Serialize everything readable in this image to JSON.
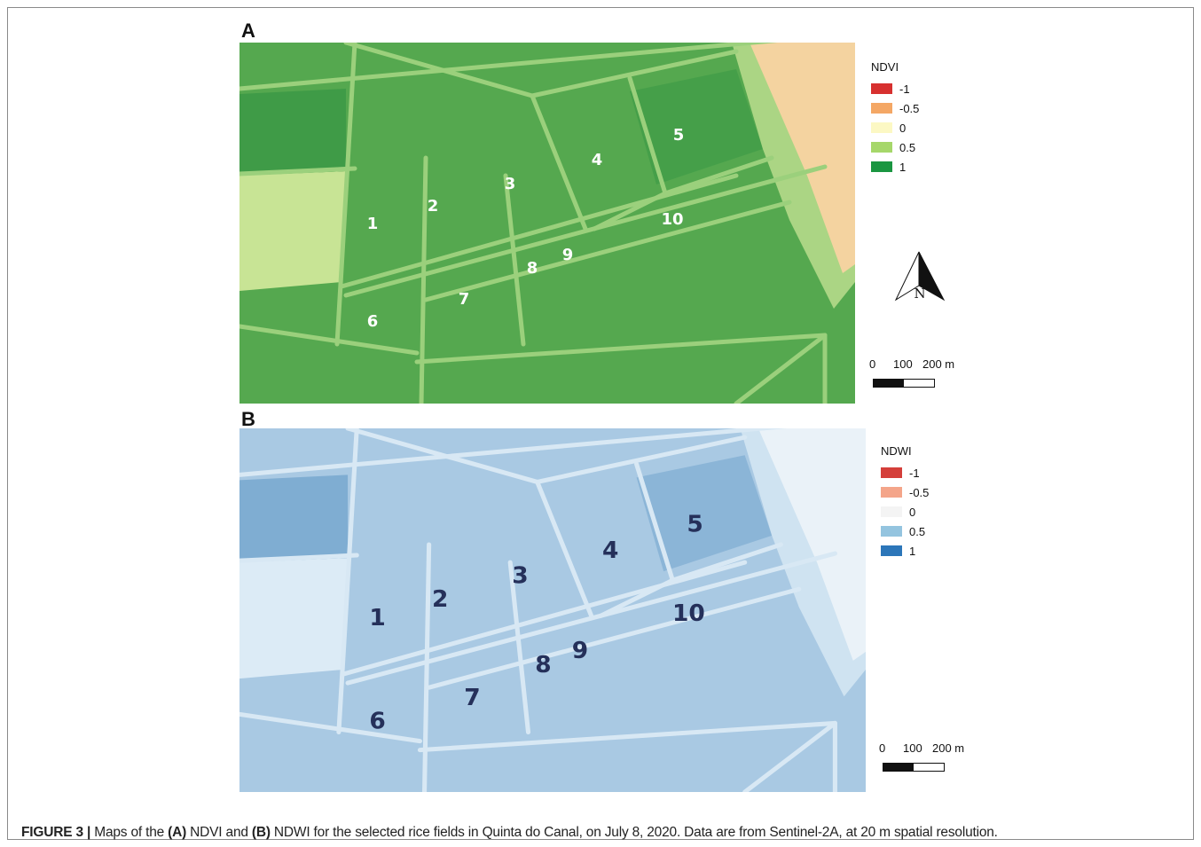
{
  "panels": [
    {
      "letter": "A",
      "legend": {
        "title": "NDVI",
        "items": [
          {
            "label": "-1",
            "color": "#d7302f"
          },
          {
            "label": "-0.5",
            "color": "#f4a765"
          },
          {
            "label": "0",
            "color": "#fcf8c4"
          },
          {
            "label": "0.5",
            "color": "#a6d76a"
          },
          {
            "label": "1",
            "color": "#1a9641"
          }
        ]
      },
      "colors": {
        "field": "#55a84f",
        "road": "#9bd07c",
        "edge_band": "#f4d3a0",
        "bare": "#c8e495",
        "dark_field": "#3f9b47"
      },
      "field_labels": [
        "1",
        "2",
        "3",
        "4",
        "5",
        "6",
        "7",
        "8",
        "9",
        "10"
      ],
      "label_color": "#ffffff",
      "north_letter": "N",
      "scale": {
        "labels": [
          "0",
          "100",
          "200 m"
        ]
      }
    },
    {
      "letter": "B",
      "legend": {
        "title": "NDWI",
        "items": [
          {
            "label": "-1",
            "color": "#d43f3a"
          },
          {
            "label": "-0.5",
            "color": "#f4a58a"
          },
          {
            "label": "0",
            "color": "#f4f4f4"
          },
          {
            "label": "0.5",
            "color": "#94c4df"
          },
          {
            "label": "1",
            "color": "#2c76b9"
          }
        ]
      },
      "colors": {
        "field": "#a9c9e3",
        "road": "#d8e8f4",
        "edge_band": "#eaf2f8",
        "bare": "#dcebf6",
        "dark_field": "#7fadd2"
      },
      "field_labels": [
        "1",
        "2",
        "3",
        "4",
        "5",
        "6",
        "7",
        "8",
        "9",
        "10"
      ],
      "label_color": "#25305a",
      "scale": {
        "labels": [
          "0",
          "100",
          "200 m"
        ]
      }
    }
  ],
  "caption": {
    "figure_label": "FIGURE 3 |",
    "part1": " Maps of the ",
    "a": "(A)",
    "part2": " NDVI and ",
    "b": "(B)",
    "part3": " NDWI for the selected rice fields in Quinta do Canal, on July 8, 2020. Data are from Sentinel-2A, at 20  m spatial resolution."
  }
}
